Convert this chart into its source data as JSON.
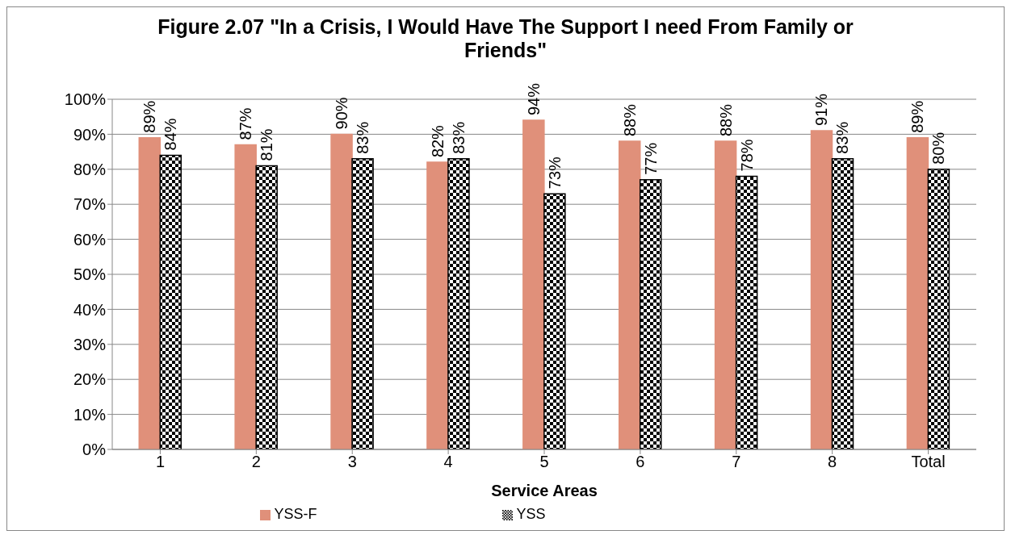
{
  "chart_data": {
    "type": "bar",
    "title": "Figure 2.07 \"In a Crisis, I Would Have The Support I need From Family or Friends\"",
    "xlabel": "Service Areas",
    "categories": [
      "1",
      "2",
      "3",
      "4",
      "5",
      "6",
      "7",
      "8",
      "Total"
    ],
    "series": [
      {
        "name": "YSS-F",
        "color": "#e0907a",
        "values": [
          89,
          87,
          90,
          82,
          94,
          88,
          88,
          91,
          89
        ],
        "value_labels": [
          "89%",
          "87%",
          "90%",
          "82%",
          "94%",
          "88%",
          "88%",
          "91%",
          "89%"
        ]
      },
      {
        "name": "YSS",
        "color": "#000000",
        "values": [
          84,
          81,
          83,
          83,
          73,
          77,
          78,
          83,
          80
        ],
        "value_labels": [
          "84%",
          "81%",
          "83%",
          "83%",
          "73%",
          "77%",
          "78%",
          "83%",
          "80%"
        ]
      }
    ],
    "ylim": [
      0,
      100
    ],
    "yticks": [
      {
        "value": 0,
        "label": "0%"
      },
      {
        "value": 10,
        "label": "10%"
      },
      {
        "value": 20,
        "label": "20%"
      },
      {
        "value": 30,
        "label": "30%"
      },
      {
        "value": 40,
        "label": "40%"
      },
      {
        "value": 50,
        "label": "50%"
      },
      {
        "value": 60,
        "label": "60%"
      },
      {
        "value": 70,
        "label": "70%"
      },
      {
        "value": 80,
        "label": "80%"
      },
      {
        "value": 90,
        "label": "90%"
      },
      {
        "value": 100,
        "label": "100%"
      }
    ],
    "grid": "y",
    "legend": "bottom"
  }
}
